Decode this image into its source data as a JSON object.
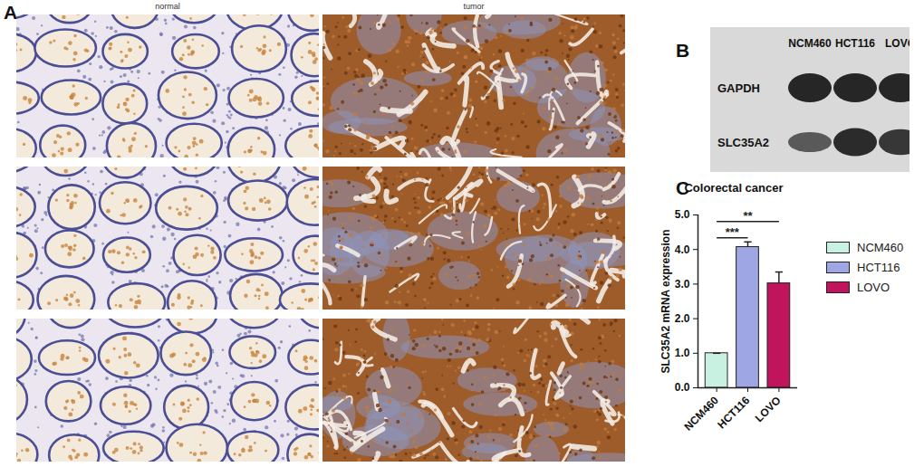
{
  "panel_labels": [
    "A",
    "B",
    "C"
  ],
  "ihc": {
    "columns": [
      "normal",
      "tumor"
    ],
    "rows": 3
  },
  "western_blot": {
    "lanes": [
      "NCM460",
      "HCT116",
      "LOVO"
    ],
    "bands": [
      {
        "name": "GAPDH",
        "intensity": [
          1,
          1,
          1
        ]
      },
      {
        "name": "SLC35A2",
        "intensity": [
          0.55,
          0.95,
          0.85
        ]
      }
    ]
  },
  "chart_data": {
    "type": "bar",
    "title": "Colorectal cancer",
    "categories": [
      "NCM460",
      "HCT116",
      "LOVO"
    ],
    "values": [
      1,
      4.07,
      3.02
    ],
    "errors": [
      0,
      0.15,
      0.33
    ],
    "colors": [
      "#c9f1e2",
      "#9ea6e3",
      "#c0155c"
    ],
    "y_label": "SLC35A2 mRNA expression",
    "ylim": [
      0,
      5
    ],
    "yticks": [
      0,
      1,
      2,
      3,
      4,
      5
    ],
    "legend": "right",
    "annotations": [
      {
        "from": "NCM460",
        "to": "HCT116",
        "label": "***"
      },
      {
        "from": "NCM460",
        "to": "LOVO",
        "label": "**"
      }
    ]
  }
}
